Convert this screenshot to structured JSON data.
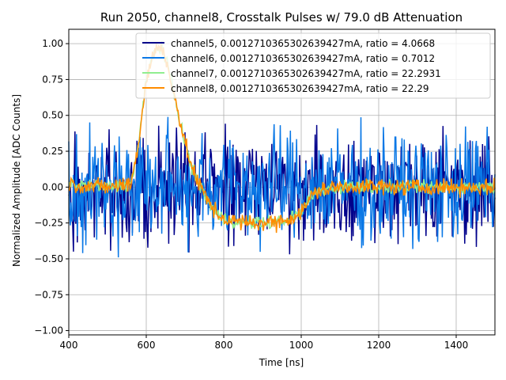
{
  "chart_data": {
    "type": "line",
    "title": "Run 2050, channel8, Crosstalk Pulses w/ 79.0 dB Attenuation",
    "xlabel": "Time [ns]",
    "ylabel": "Normalized Amplitude [ADC Counts]",
    "xlim": [
      400,
      1500
    ],
    "ylim": [
      -1.03,
      1.1
    ],
    "xticks": [
      400,
      600,
      800,
      1000,
      1200,
      1400
    ],
    "yticks": [
      -1.0,
      -0.75,
      -0.5,
      -0.25,
      0.0,
      0.25,
      0.5,
      0.75,
      1.0
    ],
    "xtick_labels": [
      "400",
      "600",
      "800",
      "1000",
      "1200",
      "1400"
    ],
    "ytick_labels": [
      "−1.00",
      "−0.75",
      "−0.50",
      "−0.25",
      "0.00",
      "0.25",
      "0.50",
      "0.75",
      "1.00"
    ],
    "grid": true,
    "legend_position": "top-right",
    "series": [
      {
        "name": "channel5, 0.001271036530263942​7mA, ratio = 4.0668",
        "color": "#00008b",
        "noise_amplitude": 0.4,
        "x": [
          400,
          450,
          500,
          550,
          600,
          650,
          700,
          750,
          800,
          850,
          900,
          950,
          1000,
          1050,
          1100,
          1150,
          1200,
          1250,
          1300,
          1350,
          1400,
          1450,
          1500
        ],
        "values": [
          0.0,
          0.0,
          0.0,
          0.0,
          0.0,
          0.0,
          0.0,
          0.0,
          0.0,
          0.0,
          0.0,
          0.0,
          0.0,
          0.0,
          0.0,
          0.0,
          0.0,
          0.0,
          0.0,
          0.0,
          0.0,
          0.0,
          0.0
        ]
      },
      {
        "name": "channel6, 0.001271036530263942​7mA, ratio = 0.7012",
        "color": "#0a78e6",
        "noise_amplitude": 0.4,
        "x": [
          400,
          450,
          500,
          550,
          600,
          650,
          700,
          750,
          800,
          850,
          900,
          950,
          1000,
          1050,
          1100,
          1150,
          1200,
          1250,
          1300,
          1350,
          1400,
          1450,
          1500
        ],
        "values": [
          0.0,
          0.0,
          0.0,
          0.0,
          0.0,
          0.0,
          0.0,
          0.0,
          0.0,
          0.0,
          0.0,
          0.0,
          0.0,
          0.0,
          0.0,
          0.0,
          0.0,
          0.0,
          0.0,
          0.0,
          0.0,
          0.0,
          0.0
        ]
      },
      {
        "name": "channel7, 0.001271036530263942​7mA, ratio = 22.2931",
        "color": "#90ee90",
        "noise_amplitude": 0.05,
        "x": [
          400,
          500,
          560,
          580,
          600,
          620,
          640,
          660,
          680,
          700,
          720,
          740,
          760,
          780,
          800,
          850,
          900,
          950,
          1000,
          1020,
          1050,
          1100,
          1150,
          1200,
          1300,
          1400,
          1500
        ],
        "values": [
          0.02,
          0.0,
          0.02,
          0.3,
          0.75,
          0.95,
          0.97,
          0.8,
          0.55,
          0.3,
          0.12,
          0.0,
          -0.1,
          -0.18,
          -0.22,
          -0.25,
          -0.25,
          -0.24,
          -0.18,
          -0.08,
          -0.02,
          0.0,
          0.01,
          0.0,
          0.0,
          0.0,
          0.0
        ]
      },
      {
        "name": "channel8, 0.001271036530263942​7mA, ratio = 22.29",
        "color": "#ff8c00",
        "noise_amplitude": 0.06,
        "x": [
          400,
          500,
          560,
          580,
          600,
          620,
          640,
          660,
          680,
          700,
          720,
          740,
          760,
          780,
          800,
          850,
          900,
          950,
          1000,
          1020,
          1050,
          1100,
          1150,
          1200,
          1300,
          1400,
          1500
        ],
        "values": [
          0.02,
          0.0,
          0.02,
          0.3,
          0.75,
          0.95,
          0.97,
          0.8,
          0.55,
          0.3,
          0.12,
          0.0,
          -0.1,
          -0.18,
          -0.22,
          -0.25,
          -0.25,
          -0.24,
          -0.18,
          -0.08,
          -0.02,
          0.0,
          0.01,
          0.0,
          0.0,
          0.0,
          0.0
        ]
      }
    ]
  }
}
